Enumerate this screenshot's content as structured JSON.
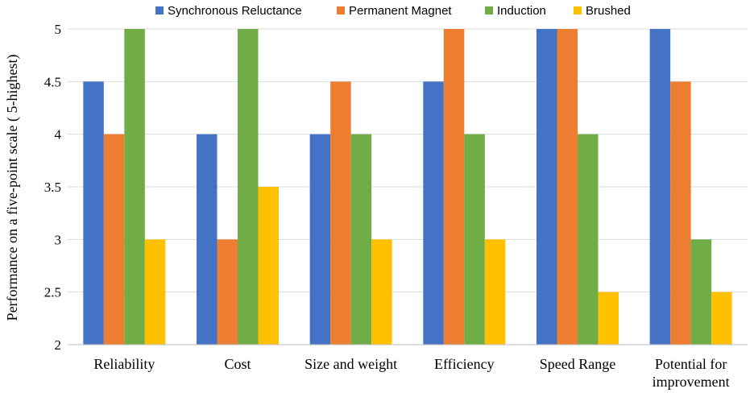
{
  "chart_data": {
    "type": "bar",
    "title": "",
    "xlabel": "",
    "ylabel": "Performance on a five-point scale ( 5-highest)",
    "ylim": [
      2,
      5
    ],
    "yticks": [
      "2",
      "2.5",
      "3",
      "3.5",
      "4",
      "4.5",
      "5"
    ],
    "grid": true,
    "legend_position": "top",
    "categories": [
      [
        "Reliability"
      ],
      [
        "Cost"
      ],
      [
        "Size and weight"
      ],
      [
        "Efficiency"
      ],
      [
        "Speed Range"
      ],
      [
        "Potential for",
        "improvement"
      ]
    ],
    "series": [
      {
        "name": "Synchronous Reluctance",
        "color": "#4472C4",
        "values": [
          4.5,
          4,
          4,
          4.5,
          5,
          5
        ]
      },
      {
        "name": "Permanent Magnet",
        "color": "#ED7D31",
        "values": [
          4,
          3,
          4.5,
          5,
          5,
          4.5
        ]
      },
      {
        "name": "Induction",
        "color": "#70AD47",
        "values": [
          5,
          5,
          4,
          4,
          4,
          3
        ]
      },
      {
        "name": "Brushed",
        "color": "#FFC000",
        "values": [
          3,
          3.5,
          3,
          3,
          2.5,
          2.5
        ]
      }
    ]
  }
}
